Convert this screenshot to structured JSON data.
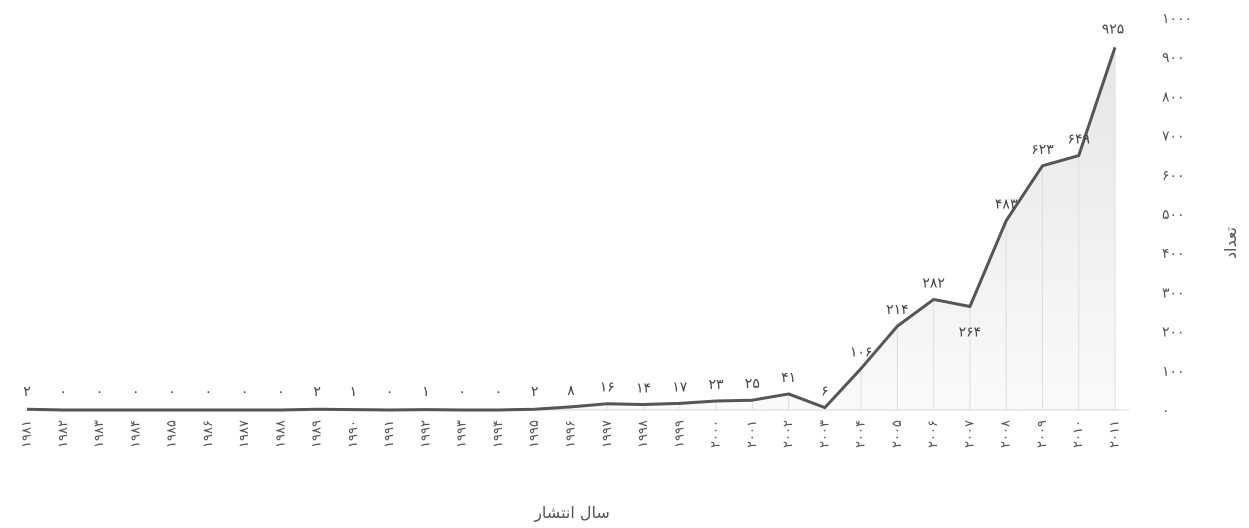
{
  "chart_data": {
    "type": "area",
    "xlabel": "سال انتشار",
    "ylabel": "تعداد",
    "ylim": [
      0,
      1000
    ],
    "yticks": [
      0,
      100,
      200,
      300,
      400,
      500,
      600,
      700,
      800,
      900,
      1000
    ],
    "ytick_labels": [
      "۰",
      "۱۰۰",
      "۲۰۰",
      "۳۰۰",
      "۴۰۰",
      "۵۰۰",
      "۶۰۰",
      "۷۰۰",
      "۸۰۰",
      "۹۰۰",
      "۱۰۰۰"
    ],
    "categories": [
      "۱۹۸۱",
      "۱۹۸۲",
      "۱۹۸۳",
      "۱۹۸۴",
      "۱۹۸۵",
      "۱۹۸۶",
      "۱۹۸۷",
      "۱۹۸۸",
      "۱۹۸۹",
      "۱۹۹۰",
      "۱۹۹۱",
      "۱۹۹۲",
      "۱۹۹۳",
      "۱۹۹۴",
      "۱۹۹۵",
      "۱۹۹۶",
      "۱۹۹۷",
      "۱۹۹۸",
      "۱۹۹۹",
      "۲۰۰۰",
      "۲۰۰۱",
      "۲۰۰۲",
      "۲۰۰۳",
      "۲۰۰۴",
      "۲۰۰۵",
      "۲۰۰۶",
      "۲۰۰۷",
      "۲۰۰۸",
      "۲۰۰۹",
      "۲۰۱۰",
      "۲۰۱۱"
    ],
    "values": [
      2,
      0,
      0,
      0,
      0,
      0,
      0,
      0,
      2,
      1,
      0,
      1,
      0,
      0,
      2,
      8,
      16,
      14,
      17,
      23,
      25,
      41,
      6,
      106,
      214,
      282,
      264,
      483,
      623,
      649,
      925
    ],
    "value_labels": [
      "۲",
      "۰",
      "۰",
      "۰",
      "۰",
      "۰",
      "۰",
      "۰",
      "۲",
      "۱",
      "۰",
      "۱",
      "۰",
      "۰",
      "۲",
      "۸",
      "۱۶",
      "۱۴",
      "۱۷",
      "۲۳",
      "۲۵",
      "۴۱",
      "۶",
      "۱۰۶",
      "۲۱۴",
      "۲۸۲",
      "۲۶۴",
      "۴۸۳",
      "۶۲۳",
      "۶۴۹",
      "۹۲۵"
    ],
    "grid": false,
    "legend": "none",
    "line_color": "#555555",
    "area_top_color": "#e6e6e6",
    "area_bottom_color": "#fafafa",
    "drop_line_color": "#dddddd"
  }
}
